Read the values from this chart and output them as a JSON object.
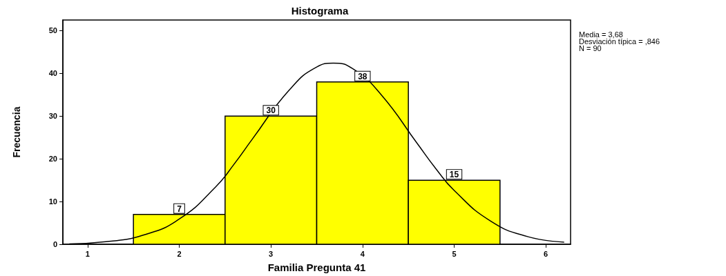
{
  "chart_data": {
    "type": "histogram",
    "title": "Histograma",
    "xlabel": "Familia Pregunta 41",
    "ylabel": "Frecuencia",
    "annotations": [
      "Media = 3,68",
      "Desviación típica = ,846",
      "N = 90"
    ],
    "bins": [
      1.5,
      2.5,
      3.5,
      4.5,
      5.5
    ],
    "values": [
      7,
      30,
      38,
      15
    ],
    "color": "#ffff00",
    "value_labels": [
      "7",
      "30",
      "38",
      "15"
    ],
    "series": [
      {
        "type": "line",
        "color": "#000000",
        "x": [
          0.8,
          1.2,
          1.6,
          2.0,
          2.4,
          2.6,
          2.8,
          3.2,
          3.5,
          3.68,
          3.9,
          4.2,
          4.6,
          4.8,
          5.0,
          5.4,
          5.8,
          6.2
        ],
        "values": [
          0.1,
          0.6,
          2.1,
          5.9,
          13.5,
          18.8,
          24.7,
          36.1,
          41.5,
          42.4,
          41.0,
          35.1,
          23.5,
          17.7,
          12.6,
          5.4,
          1.8,
          0.5
        ]
      }
    ],
    "xlim": [
      0.73,
      6.27
    ],
    "xticks": [
      1,
      2,
      3,
      4,
      5,
      6
    ],
    "ylim": [
      0,
      52.5
    ],
    "yticks": [
      0,
      10,
      20,
      30,
      40,
      50
    ],
    "grid": false,
    "marker": "none",
    "line_style": "solid"
  }
}
